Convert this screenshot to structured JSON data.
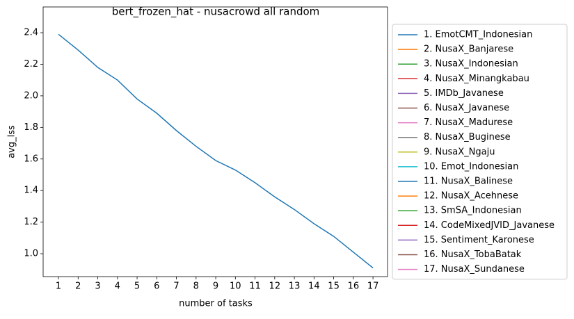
{
  "chart_data": {
    "type": "line",
    "title": "bert_frozen_hat - nusacrowd all random",
    "x_label": "number of tasks",
    "y_label": "avg_lss",
    "x": [
      1,
      2,
      3,
      4,
      5,
      6,
      7,
      8,
      9,
      10,
      11,
      12,
      13,
      14,
      15,
      16,
      17
    ],
    "series": [
      {
        "name": "1. EmotCMT_Indonesian",
        "color": "#1f77b4",
        "values": [
          2.39,
          2.29,
          2.18,
          2.1,
          1.98,
          1.89,
          1.78,
          1.68,
          1.59,
          1.53,
          1.45,
          1.36,
          1.28,
          1.19,
          1.11,
          1.01,
          0.91
        ]
      },
      {
        "name": "2. NusaX_Banjarese",
        "color": "#ff7f0e",
        "values": [
          null,
          null,
          null,
          null,
          null,
          null,
          null,
          null,
          null,
          null,
          null,
          null,
          null,
          null,
          null,
          null,
          null
        ]
      },
      {
        "name": "3. NusaX_Indonesian",
        "color": "#2ca02c",
        "values": [
          null,
          null,
          null,
          null,
          null,
          null,
          null,
          null,
          null,
          null,
          null,
          null,
          null,
          null,
          null,
          null,
          null
        ]
      },
      {
        "name": "4. NusaX_Minangkabau",
        "color": "#d62728",
        "values": [
          null,
          null,
          null,
          null,
          null,
          null,
          null,
          null,
          null,
          null,
          null,
          null,
          null,
          null,
          null,
          null,
          null
        ]
      },
      {
        "name": "5. IMDb_Javanese",
        "color": "#9467bd",
        "values": [
          null,
          null,
          null,
          null,
          null,
          null,
          null,
          null,
          null,
          null,
          null,
          null,
          null,
          null,
          null,
          null,
          null
        ]
      },
      {
        "name": "6. NusaX_Javanese",
        "color": "#8c564b",
        "values": [
          null,
          null,
          null,
          null,
          null,
          null,
          null,
          null,
          null,
          null,
          null,
          null,
          null,
          null,
          null,
          null,
          null
        ]
      },
      {
        "name": "7. NusaX_Madurese",
        "color": "#e377c2",
        "values": [
          null,
          null,
          null,
          null,
          null,
          null,
          null,
          null,
          null,
          null,
          null,
          null,
          null,
          null,
          null,
          null,
          null
        ]
      },
      {
        "name": "8. NusaX_Buginese",
        "color": "#7f7f7f",
        "values": [
          null,
          null,
          null,
          null,
          null,
          null,
          null,
          null,
          null,
          null,
          null,
          null,
          null,
          null,
          null,
          null,
          null
        ]
      },
      {
        "name": "9. NusaX_Ngaju",
        "color": "#bcbd22",
        "values": [
          null,
          null,
          null,
          null,
          null,
          null,
          null,
          null,
          null,
          null,
          null,
          null,
          null,
          null,
          null,
          null,
          null
        ]
      },
      {
        "name": "10. Emot_Indonesian",
        "color": "#17becf",
        "values": [
          null,
          null,
          null,
          null,
          null,
          null,
          null,
          null,
          null,
          null,
          null,
          null,
          null,
          null,
          null,
          null,
          null
        ]
      },
      {
        "name": "11. NusaX_Balinese",
        "color": "#1f77b4",
        "values": [
          null,
          null,
          null,
          null,
          null,
          null,
          null,
          null,
          null,
          null,
          null,
          null,
          null,
          null,
          null,
          null,
          null
        ]
      },
      {
        "name": "12. NusaX_Acehnese",
        "color": "#ff7f0e",
        "values": [
          null,
          null,
          null,
          null,
          null,
          null,
          null,
          null,
          null,
          null,
          null,
          null,
          null,
          null,
          null,
          null,
          null
        ]
      },
      {
        "name": "13. SmSA_Indonesian",
        "color": "#2ca02c",
        "values": [
          null,
          null,
          null,
          null,
          null,
          null,
          null,
          null,
          null,
          null,
          null,
          null,
          null,
          null,
          null,
          null,
          null
        ]
      },
      {
        "name": "14. CodeMixedJVID_Javanese",
        "color": "#d62728",
        "values": [
          null,
          null,
          null,
          null,
          null,
          null,
          null,
          null,
          null,
          null,
          null,
          null,
          null,
          null,
          null,
          null,
          null
        ]
      },
      {
        "name": "15. Sentiment_Karonese",
        "color": "#9467bd",
        "values": [
          null,
          null,
          null,
          null,
          null,
          null,
          null,
          null,
          null,
          null,
          null,
          null,
          null,
          null,
          null,
          null,
          null
        ]
      },
      {
        "name": "16. NusaX_TobaBatak",
        "color": "#8c564b",
        "values": [
          null,
          null,
          null,
          null,
          null,
          null,
          null,
          null,
          null,
          null,
          null,
          null,
          null,
          null,
          null,
          null,
          null
        ]
      },
      {
        "name": "17. NusaX_Sundanese",
        "color": "#e377c2",
        "values": [
          null,
          null,
          null,
          null,
          null,
          null,
          null,
          null,
          null,
          null,
          null,
          null,
          null,
          null,
          null,
          null,
          null
        ]
      }
    ],
    "xlim": [
      0.22,
      17.74
    ],
    "ylim": [
      0.855,
      2.563
    ],
    "xticks": [
      1,
      2,
      3,
      4,
      5,
      6,
      7,
      8,
      9,
      10,
      11,
      12,
      13,
      14,
      15,
      16,
      17
    ],
    "yticks": [
      {
        "value": 1,
        "label": "1.0"
      },
      1.2,
      1.4,
      1.6,
      1.8,
      {
        "value": 2,
        "label": "2.0"
      },
      2.2,
      2.4
    ],
    "grid": false,
    "legend": "outside right"
  }
}
